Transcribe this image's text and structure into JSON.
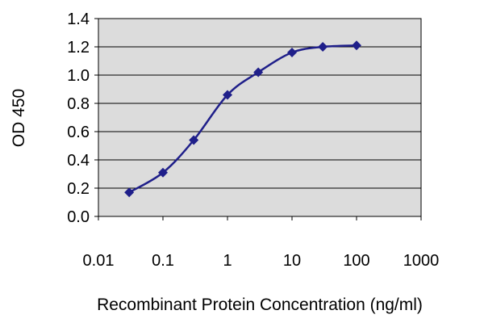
{
  "chart_data": {
    "type": "line",
    "title": "",
    "xlabel": "Recombinant Protein Concentration (ng/ml)",
    "ylabel": "OD 450",
    "x_scale": "log",
    "xlim": [
      0.01,
      1000
    ],
    "ylim": [
      0.0,
      1.4
    ],
    "x_ticks": [
      "0.01",
      "0.1",
      "1",
      "10",
      "100",
      "1000"
    ],
    "y_ticks": [
      "0.0",
      "0.2",
      "0.4",
      "0.6",
      "0.8",
      "1.0",
      "1.2",
      "1.4"
    ],
    "grid": "horizontal",
    "legend": "none",
    "series": [
      {
        "x": [
          0.03,
          0.1,
          0.3,
          1,
          3,
          10,
          30,
          100
        ],
        "y": [
          0.17,
          0.31,
          0.54,
          0.86,
          1.02,
          1.16,
          1.2,
          1.21
        ]
      }
    ],
    "colors": {
      "line": "#1f1f8a",
      "plot_background": "#dcdcdc",
      "grid": "#000000"
    }
  }
}
